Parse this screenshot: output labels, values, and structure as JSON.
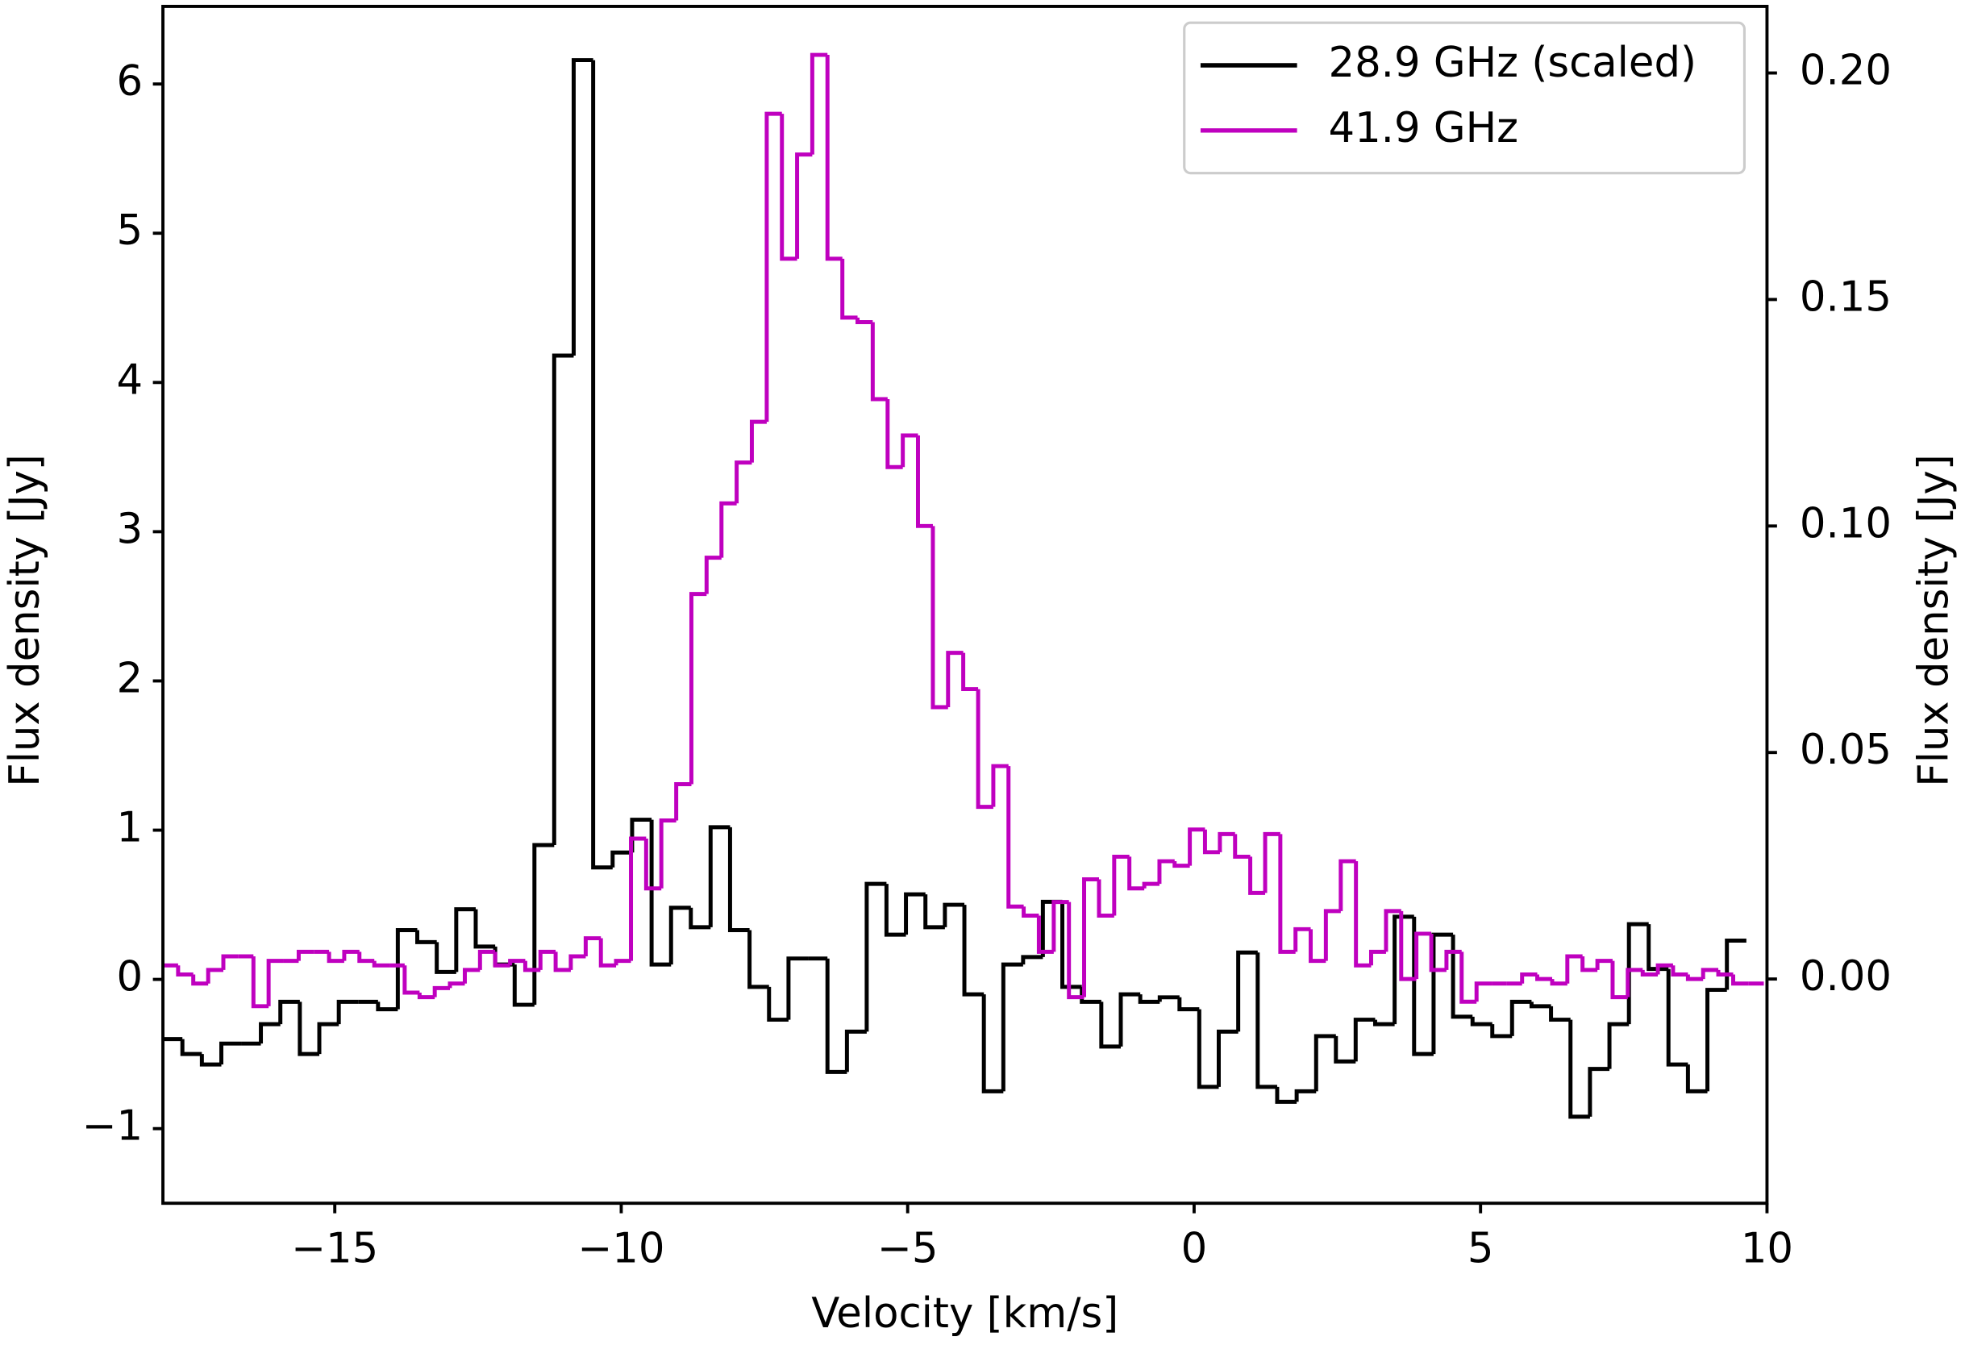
{
  "chart_data": {
    "type": "step",
    "step": "mid",
    "xlabel": "Velocity [km/s]",
    "ylabel": "Flux density [Jy]",
    "y2label": "Flux density [Jy]",
    "xlim": [
      -18,
      10
    ],
    "ylim": [
      -1.5,
      6.52
    ],
    "y2lim": [
      -0.0495,
      0.2147
    ],
    "xticks": [
      {
        "value": -15,
        "label": "−15"
      },
      {
        "value": -10,
        "label": "−10"
      },
      {
        "value": -5,
        "label": "−5"
      },
      0,
      5,
      10
    ],
    "yticks": [
      {
        "value": -1,
        "label": "−1"
      },
      0,
      1,
      2,
      3,
      4,
      5,
      6
    ],
    "y2ticks": [
      {
        "value": 0,
        "label": "0.00"
      },
      {
        "value": 0.05,
        "label": "0.05"
      },
      {
        "value": 0.1,
        "label": "0.10"
      },
      {
        "value": 0.15,
        "label": "0.15"
      },
      {
        "value": 0.2,
        "label": "0.20"
      }
    ],
    "legend": "upper right",
    "grid": false,
    "series": [
      {
        "name": "28.9 GHz (scaled)",
        "color": "#000000",
        "x": [
          -17.83,
          -17.49,
          -17.15,
          -16.81,
          -16.46,
          -16.12,
          -15.78,
          -15.44,
          -15.1,
          -14.76,
          -14.42,
          -14.07,
          -13.73,
          -13.39,
          -13.05,
          -12.71,
          -12.37,
          -12.03,
          -11.69,
          -11.34,
          -11.0,
          -10.66,
          -10.32,
          -9.98,
          -9.64,
          -9.3,
          -8.96,
          -8.61,
          -8.27,
          -7.93,
          -7.59,
          -7.25,
          -6.91,
          -6.57,
          -6.23,
          -5.89,
          -5.54,
          -5.2,
          -4.86,
          -4.52,
          -4.18,
          -3.84,
          -3.5,
          -3.16,
          -2.81,
          -2.47,
          -2.13,
          -1.79,
          -1.45,
          -1.11,
          -0.77,
          -0.43,
          -0.08,
          0.26,
          0.6,
          0.94,
          1.28,
          1.62,
          1.96,
          2.3,
          2.65,
          2.99,
          3.33,
          3.67,
          4.01,
          4.35,
          4.69,
          5.03,
          5.38,
          5.72,
          6.06,
          6.4,
          6.74,
          7.08,
          7.42,
          7.76,
          8.11,
          8.45,
          8.79,
          9.13,
          9.47
        ],
        "values": [
          -0.4,
          -0.5,
          -0.57,
          -0.43,
          -0.43,
          -0.3,
          -0.15,
          -0.5,
          -0.3,
          -0.15,
          -0.15,
          -0.2,
          0.33,
          0.25,
          0.05,
          0.47,
          0.22,
          0.1,
          -0.17,
          0.9,
          4.18,
          6.16,
          0.75,
          0.85,
          1.07,
          0.1,
          0.48,
          0.35,
          1.02,
          0.33,
          -0.05,
          -0.27,
          0.14,
          0.14,
          -0.62,
          -0.35,
          0.64,
          0.3,
          0.57,
          0.35,
          0.5,
          -0.1,
          -0.75,
          0.1,
          0.15,
          0.52,
          -0.05,
          -0.15,
          -0.45,
          -0.1,
          -0.15,
          -0.12,
          -0.2,
          -0.72,
          -0.35,
          0.18,
          -0.72,
          -0.82,
          -0.75,
          -0.38,
          -0.55,
          -0.27,
          -0.3,
          0.42,
          -0.5,
          0.3,
          -0.25,
          -0.3,
          -0.38,
          -0.15,
          -0.18,
          -0.27,
          -0.92,
          -0.6,
          -0.3,
          0.37,
          0.07,
          -0.57,
          -0.75,
          -0.07,
          0.26
        ]
      },
      {
        "name": "41.9 GHz",
        "color": "#bf00bf",
        "axis": "y2",
        "x": [
          -17.87,
          -17.6,
          -17.34,
          -17.08,
          -16.81,
          -16.55,
          -16.29,
          -16.02,
          -15.76,
          -15.5,
          -15.23,
          -14.97,
          -14.7,
          -14.44,
          -14.18,
          -13.91,
          -13.65,
          -13.39,
          -13.12,
          -12.86,
          -12.6,
          -12.33,
          -12.07,
          -11.81,
          -11.54,
          -11.28,
          -11.01,
          -10.75,
          -10.49,
          -10.22,
          -9.96,
          -9.7,
          -9.43,
          -9.17,
          -8.91,
          -8.64,
          -8.38,
          -8.12,
          -7.85,
          -7.59,
          -7.33,
          -7.06,
          -6.8,
          -6.53,
          -6.27,
          -6.01,
          -5.74,
          -5.48,
          -5.22,
          -4.95,
          -4.69,
          -4.43,
          -4.16,
          -3.9,
          -3.64,
          -3.37,
          -3.11,
          -2.84,
          -2.58,
          -2.32,
          -2.05,
          -1.79,
          -1.53,
          -1.26,
          -1.0,
          -0.74,
          -0.47,
          -0.21,
          0.06,
          0.32,
          0.58,
          0.85,
          1.11,
          1.37,
          1.64,
          1.9,
          2.17,
          2.43,
          2.69,
          2.96,
          3.22,
          3.48,
          3.75,
          4.01,
          4.27,
          4.54,
          4.8,
          5.06,
          5.33,
          5.59,
          5.86,
          6.12,
          6.38,
          6.65,
          6.91,
          7.17,
          7.44,
          7.7,
          7.96,
          8.23,
          8.49,
          8.75,
          9.02,
          9.28,
          9.54,
          9.81
        ],
        "values": [
          0.003,
          0.001,
          -0.001,
          0.002,
          0.005,
          0.005,
          -0.006,
          0.004,
          0.004,
          0.006,
          0.006,
          0.004,
          0.006,
          0.004,
          0.003,
          0.003,
          -0.003,
          -0.004,
          -0.002,
          -0.001,
          0.002,
          0.006,
          0.003,
          0.004,
          0.002,
          0.006,
          0.002,
          0.005,
          0.009,
          0.003,
          0.004,
          0.031,
          0.02,
          0.035,
          0.043,
          0.085,
          0.093,
          0.105,
          0.114,
          0.123,
          0.191,
          0.159,
          0.182,
          0.204,
          0.159,
          0.146,
          0.145,
          0.128,
          0.113,
          0.12,
          0.1,
          0.06,
          0.072,
          0.064,
          0.038,
          0.047,
          0.016,
          0.014,
          0.006,
          0.017,
          -0.004,
          0.022,
          0.014,
          0.027,
          0.02,
          0.021,
          0.026,
          0.025,
          0.033,
          0.028,
          0.032,
          0.027,
          0.019,
          0.032,
          0.006,
          0.011,
          0.004,
          0.015,
          0.026,
          0.003,
          0.006,
          0.015,
          0.0,
          0.01,
          0.002,
          0.006,
          -0.005,
          -0.001,
          -0.001,
          -0.001,
          0.001,
          0.0,
          -0.001,
          0.005,
          0.002,
          0.004,
          -0.004,
          0.002,
          0.001,
          0.003,
          0.001,
          0.0,
          0.002,
          0.001,
          -0.001,
          -0.001
        ]
      }
    ]
  }
}
